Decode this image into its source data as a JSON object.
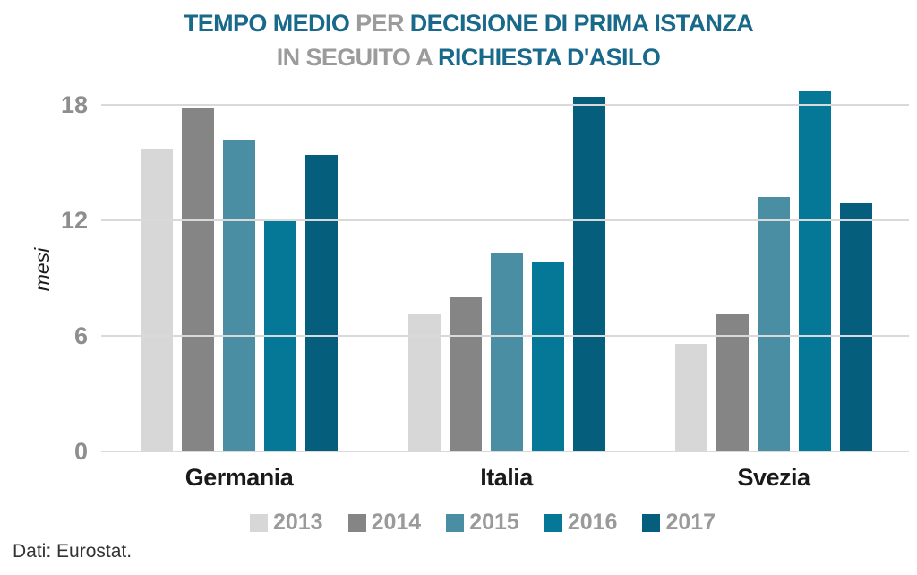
{
  "title": {
    "line1": {
      "seg1": "TEMPO MEDIO",
      "seg2": "PER",
      "seg3": "DECISIONE DI PRIMA ISTANZA"
    },
    "line2": {
      "seg1": "IN SEGUITO A",
      "seg2": "RICHIESTA D'ASILO"
    }
  },
  "source_note": "Dati: Eurostat.",
  "colors": {
    "title_teal": "#19698B",
    "title_gray": "#9B9B9B",
    "tick_gray": "#8E8E8E",
    "legend_gray": "#9A9A9A",
    "grid": "#D9D9D9",
    "label_black": "#1A1A1A"
  },
  "chart_data": {
    "type": "bar",
    "title": "TEMPO MEDIO PER DECISIONE DI PRIMA ISTANZA IN SEGUITO A RICHIESTA D'ASILO",
    "ylabel": "mesi",
    "xlabel": "",
    "categories": [
      "Germania",
      "Italia",
      "Svezia"
    ],
    "series": [
      {
        "name": "2013",
        "color": "#D7D7D7",
        "values": [
          15.7,
          7.1,
          5.6
        ]
      },
      {
        "name": "2014",
        "color": "#858585",
        "values": [
          17.8,
          8.0,
          7.1
        ]
      },
      {
        "name": "2015",
        "color": "#4A8EA3",
        "values": [
          16.2,
          10.3,
          13.2
        ]
      },
      {
        "name": "2016",
        "color": "#047896",
        "values": [
          12.1,
          9.8,
          18.7
        ]
      },
      {
        "name": "2017",
        "color": "#055E7C",
        "values": [
          15.4,
          18.4,
          12.9
        ]
      }
    ],
    "yticks": [
      0,
      6,
      12,
      18
    ],
    "ylim": [
      0,
      19.3
    ],
    "grid": true,
    "legend_position": "bottom"
  }
}
